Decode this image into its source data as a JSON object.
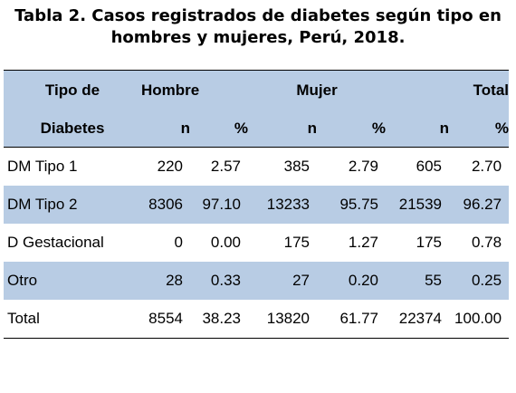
{
  "title": {
    "line1": "Tabla 2.  Casos registrados de diabetes según tipo en",
    "line2": "hombres y mujeres, Perú, 2018."
  },
  "header": {
    "tipo_line1": "Tipo de",
    "tipo_line2": "Diabetes",
    "groups": [
      "Hombre",
      "Mujer",
      "Total"
    ],
    "sub": [
      "n",
      "%",
      "n",
      "%",
      "n",
      "%"
    ]
  },
  "rows": [
    {
      "label": "DM Tipo 1",
      "values": [
        "220",
        "2.57",
        "385",
        "2.79",
        "605",
        "2.70"
      ]
    },
    {
      "label": "DM Tipo 2",
      "values": [
        "8306",
        "97.10",
        "13233",
        "95.75",
        "21539",
        "96.27"
      ]
    },
    {
      "label": "D Gestacional",
      "values": [
        "0",
        "0.00",
        "175",
        "1.27",
        "175",
        "0.78"
      ]
    },
    {
      "label": "Otro",
      "values": [
        "28",
        "0.33",
        "27",
        "0.20",
        "55",
        "0.25"
      ]
    },
    {
      "label": "Total",
      "values": [
        "8554",
        "38.23",
        "13820",
        "61.77",
        "22374",
        "100.00"
      ]
    }
  ],
  "colors": {
    "header_band": "#b8cce4",
    "row_shade": "#b8cce4",
    "rule": "#000000"
  }
}
